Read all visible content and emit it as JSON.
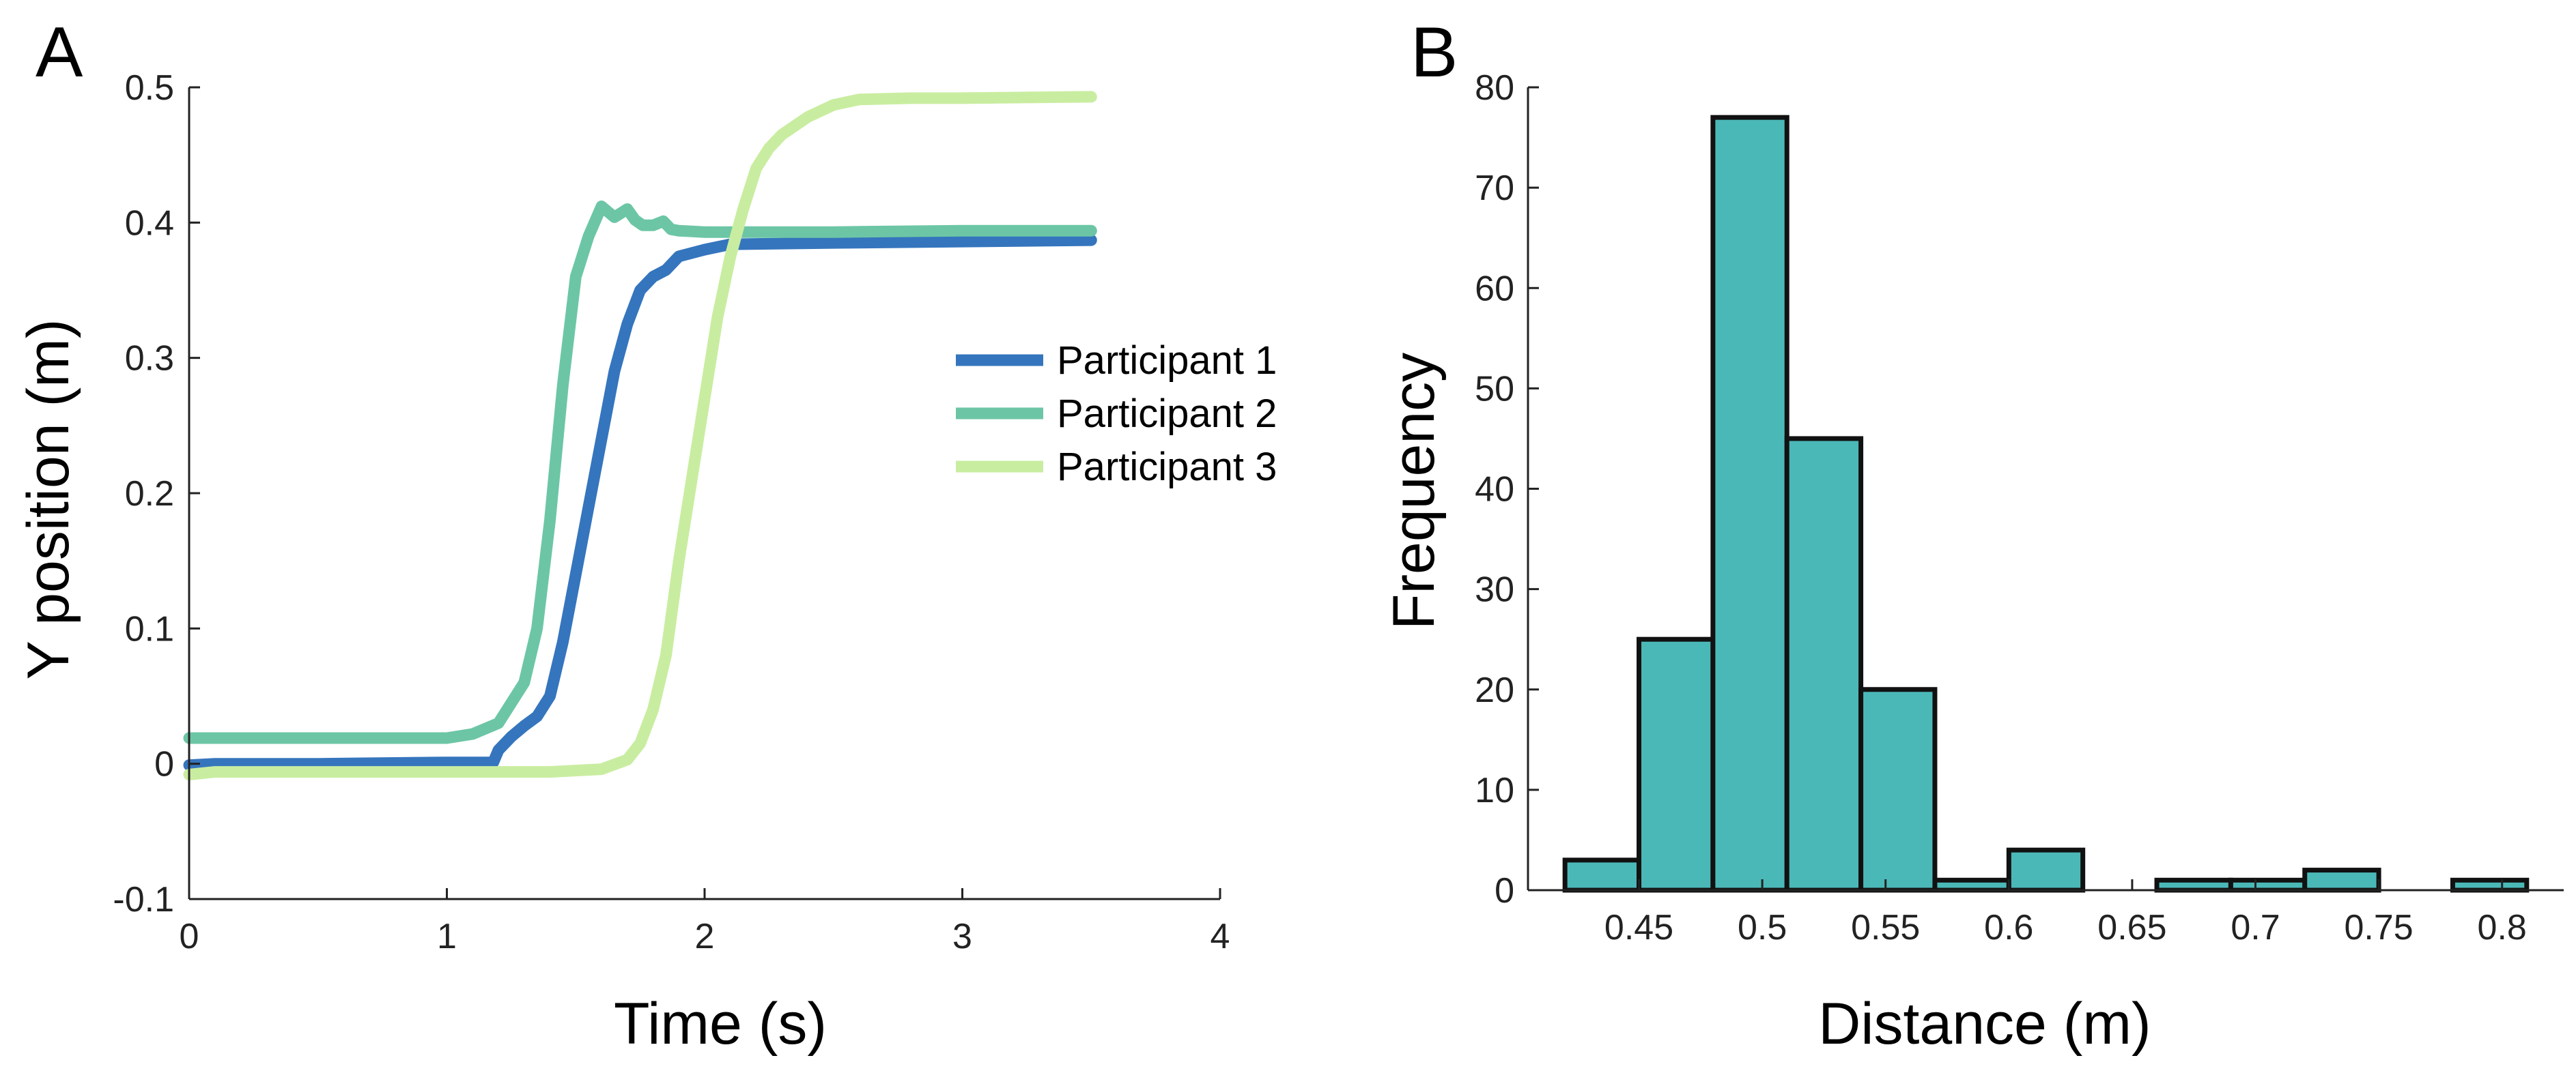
{
  "colors": {
    "participant1": "#3575bd",
    "participant2": "#6cc6a5",
    "participant3": "#c9eda0",
    "hist_fill": "#4bb8b8",
    "hist_edge": "#111111",
    "axis": "#222222"
  },
  "chart_data": [
    {
      "panel": "A",
      "type": "line",
      "xlabel": "Time (s)",
      "ylabel": "Y position (m)",
      "xlim": [
        0,
        4
      ],
      "ylim": [
        -0.1,
        0.5
      ],
      "xticks": [
        0,
        1,
        2,
        3,
        4
      ],
      "yticks": [
        -0.1,
        0,
        0.1,
        0.2,
        0.3,
        0.4,
        0.5
      ],
      "xtick_labels": [
        "0",
        "1",
        "2",
        "3",
        "4"
      ],
      "ytick_labels": [
        "-0.1",
        "0",
        "0.1",
        "0.2",
        "0.3",
        "0.4",
        "0.5"
      ],
      "grid": false,
      "legend_position": "center-right",
      "series": [
        {
          "name": "Participant 1",
          "color": "#3575bd",
          "x": [
            0,
            0.1,
            0.5,
            1.0,
            1.18,
            1.2,
            1.25,
            1.3,
            1.35,
            1.4,
            1.45,
            1.5,
            1.55,
            1.6,
            1.65,
            1.7,
            1.75,
            1.8,
            1.85,
            1.9,
            2.0,
            2.1,
            2.5,
            3.0,
            3.5
          ],
          "y": [
            -0.001,
            0.0,
            0.0,
            0.001,
            0.001,
            0.01,
            0.02,
            0.028,
            0.035,
            0.05,
            0.09,
            0.14,
            0.19,
            0.24,
            0.29,
            0.325,
            0.35,
            0.36,
            0.365,
            0.375,
            0.38,
            0.384,
            0.385,
            0.386,
            0.387
          ]
        },
        {
          "name": "Participant 2",
          "color": "#6cc6a5",
          "x": [
            0,
            0.5,
            1.0,
            1.1,
            1.2,
            1.25,
            1.3,
            1.35,
            1.4,
            1.45,
            1.5,
            1.55,
            1.6,
            1.65,
            1.7,
            1.73,
            1.76,
            1.8,
            1.84,
            1.87,
            1.9,
            2.0,
            2.5,
            3.0,
            3.5
          ],
          "y": [
            0.019,
            0.019,
            0.019,
            0.022,
            0.03,
            0.045,
            0.06,
            0.1,
            0.18,
            0.28,
            0.36,
            0.39,
            0.412,
            0.404,
            0.41,
            0.402,
            0.398,
            0.398,
            0.401,
            0.395,
            0.394,
            0.393,
            0.393,
            0.394,
            0.394
          ]
        },
        {
          "name": "Participant 3",
          "color": "#c9eda0",
          "x": [
            0,
            0.1,
            0.5,
            1.0,
            1.4,
            1.6,
            1.7,
            1.75,
            1.8,
            1.85,
            1.9,
            1.95,
            2.0,
            2.05,
            2.1,
            2.15,
            2.2,
            2.25,
            2.3,
            2.4,
            2.5,
            2.6,
            2.8,
            3.0,
            3.5
          ],
          "y": [
            -0.008,
            -0.006,
            -0.006,
            -0.006,
            -0.006,
            -0.004,
            0.003,
            0.015,
            0.04,
            0.08,
            0.15,
            0.21,
            0.27,
            0.33,
            0.375,
            0.41,
            0.44,
            0.455,
            0.465,
            0.478,
            0.487,
            0.491,
            0.492,
            0.492,
            0.493
          ]
        }
      ]
    },
    {
      "panel": "B",
      "type": "bar",
      "subtype": "histogram",
      "xlabel": "Distance (m)",
      "ylabel": "Frequency",
      "xlim": [
        0.405,
        0.825
      ],
      "ylim": [
        0,
        80
      ],
      "xticks": [
        0.45,
        0.5,
        0.55,
        0.6,
        0.65,
        0.7,
        0.75,
        0.8
      ],
      "yticks": [
        0,
        10,
        20,
        30,
        40,
        50,
        60,
        70,
        80
      ],
      "xtick_labels": [
        "0.45",
        "0.5",
        "0.55",
        "0.6",
        "0.65",
        "0.7",
        "0.75",
        "0.8"
      ],
      "ytick_labels": [
        "0",
        "10",
        "20",
        "30",
        "40",
        "50",
        "60",
        "70",
        "80"
      ],
      "grid": false,
      "bin_edges": [
        0.42,
        0.45,
        0.48,
        0.51,
        0.54,
        0.57,
        0.6,
        0.63,
        0.66,
        0.69,
        0.72,
        0.75,
        0.78,
        0.81
      ],
      "values": [
        3,
        25,
        77,
        45,
        20,
        1,
        4,
        0,
        1,
        1,
        2,
        0,
        1
      ],
      "color": "#4bb8b8"
    }
  ]
}
